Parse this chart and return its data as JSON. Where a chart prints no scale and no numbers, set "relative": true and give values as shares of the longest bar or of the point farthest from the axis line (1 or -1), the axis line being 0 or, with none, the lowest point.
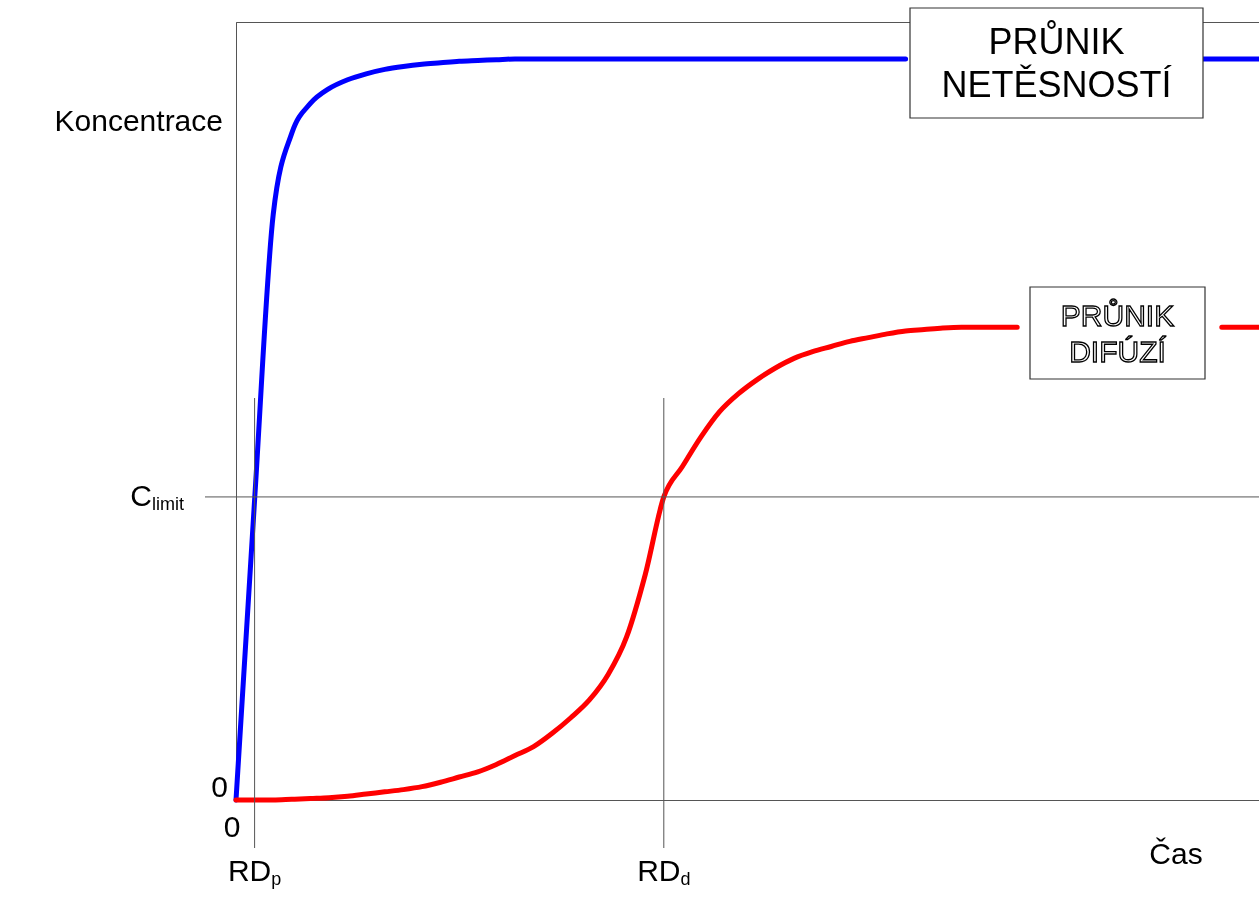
{
  "chart_data": {
    "type": "line",
    "relative": true,
    "xlabel": "Čas",
    "ylabel": "Koncentrace",
    "categories": [
      "0",
      "RD$_{p}$",
      null,
      null,
      null,
      null,
      null,
      null,
      null,
      null,
      null,
      null,
      null,
      null,
      null,
      null,
      null,
      null,
      null,
      null,
      null,
      null,
      null,
      "RD$_{d}$",
      null,
      null,
      null,
      null,
      null,
      null,
      null,
      null,
      null,
      null,
      null,
      null,
      null,
      null,
      null,
      null,
      null,
      null,
      null,
      null,
      null,
      null,
      null,
      null,
      null,
      null,
      null,
      null,
      null,
      null,
      null,
      null
    ],
    "legend": false,
    "annotations": [
      "0"
    ],
    "ref_lines": [
      {
        "axis": "y",
        "value": 0.409,
        "label": "C$_{limit}$"
      }
    ],
    "series": [
      {
        "name": "PRŮNIK NETĚSNOSTÍ",
        "color": "#0000ff",
        "values": [
          0,
          0.405,
          0.79,
          0.9,
          0.94,
          0.96,
          0.972,
          0.98,
          0.986,
          0.99,
          0.993,
          0.995,
          0.997,
          0.998,
          0.999,
          1,
          1,
          1,
          1,
          1,
          1,
          1,
          1,
          1,
          1,
          1,
          1,
          1,
          1,
          1,
          1,
          1,
          1,
          1,
          1,
          1,
          1,
          null,
          null,
          null,
          null,
          null,
          null,
          null,
          null,
          null,
          null,
          null,
          null,
          null,
          null,
          null,
          1,
          1,
          1,
          1
        ]
      },
      {
        "name": "PRŮNIK DIFÚZÍ",
        "color": "#ff0000",
        "values": [
          0,
          0,
          0,
          0.001,
          0.002,
          0.003,
          0.005,
          0.008,
          0.011,
          0.014,
          0.018,
          0.024,
          0.031,
          0.038,
          0.048,
          0.06,
          0.072,
          0.09,
          0.111,
          0.135,
          0.169,
          0.22,
          0.304,
          0.409,
          0.45,
          0.49,
          0.524,
          0.548,
          0.567,
          0.583,
          0.596,
          0.605,
          0.612,
          0.619,
          0.624,
          0.629,
          0.633,
          0.635,
          0.637,
          0.638,
          0.638,
          0.638,
          0.638,
          null,
          null,
          null,
          null,
          null,
          null,
          null,
          null,
          null,
          null,
          0.638,
          0.638,
          0.638
        ]
      }
    ]
  }
}
